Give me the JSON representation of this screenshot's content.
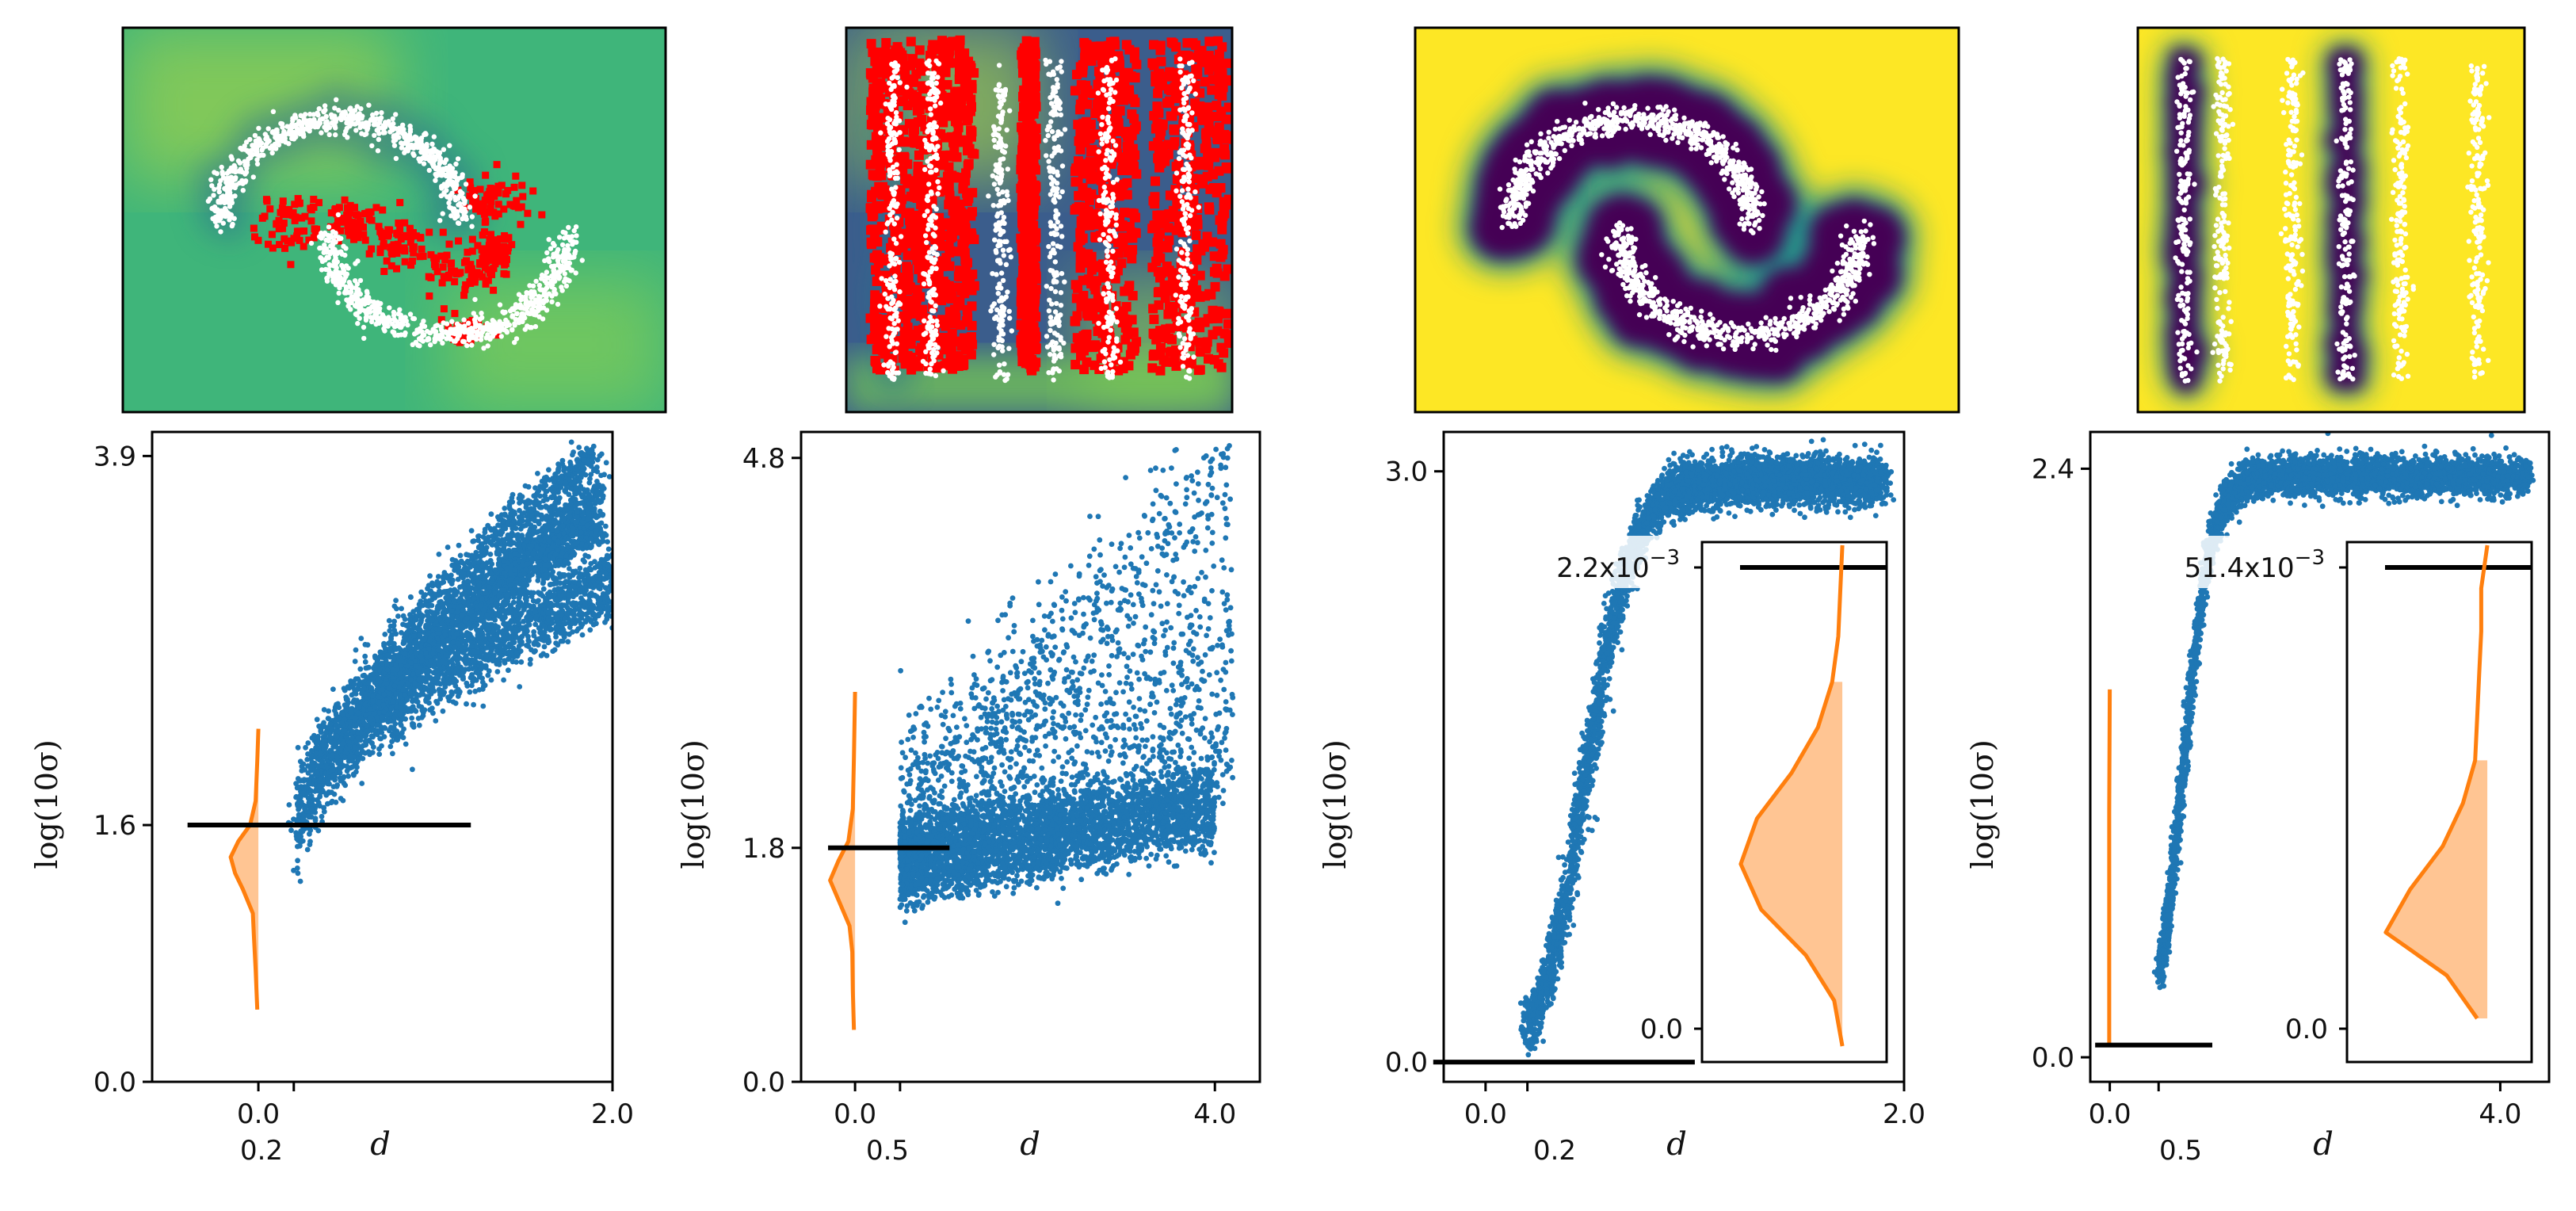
{
  "colors": {
    "scatter": "#1f77b4",
    "kde_line": "#ff7f0e",
    "kde_fill": "#ffbb80",
    "threshold": "#000000",
    "manifold_points": "#ffffff",
    "flagged_points": "#ff0000",
    "heat_low": "#440154",
    "heat_mid": "#21918c",
    "heat_high": "#fde725"
  },
  "heatmaps": [
    {
      "name": "moons-heatmap-raw",
      "dataset": "two-moons",
      "flagged_regions": true
    },
    {
      "name": "stripes-heatmap-raw",
      "dataset": "stripes",
      "flagged_regions": true
    },
    {
      "name": "moons-heatmap-trained",
      "dataset": "two-moons",
      "flagged_regions": false
    },
    {
      "name": "stripes-heatmap-trained",
      "dataset": "stripes",
      "flagged_regions": false
    }
  ],
  "chart_data": [
    {
      "type": "scatter",
      "title": "",
      "xlabel": "d",
      "ylabel": "log(10σ)",
      "xlim": [
        -0.6,
        2.0
      ],
      "ylim": [
        0.0,
        4.05
      ],
      "xticks": [
        "0.0",
        "2.0"
      ],
      "xtick_values": [
        0.0,
        2.0
      ],
      "extra_xtick": {
        "label": "0.2",
        "value": 0.2
      },
      "yticks": [
        "0.0",
        "1.6",
        "3.9"
      ],
      "ytick_values": [
        0.0,
        1.6,
        3.9
      ],
      "threshold": {
        "y": 1.6,
        "x_start": -0.4,
        "x_end": 1.2
      },
      "density_curve": {
        "x_base": 0.0,
        "y": [
          0.45,
          0.7,
          0.9,
          1.05,
          1.2,
          1.3,
          1.4,
          1.5,
          1.6,
          1.75,
          2.0,
          2.2
        ],
        "density": [
          0.02,
          0.05,
          0.08,
          0.1,
          0.28,
          0.42,
          0.5,
          0.36,
          0.15,
          0.05,
          0.02,
          0.0
        ]
      },
      "series_description": "branching bands rising from d≈0.2 to d≈1.9, log(10σ) from ≈1.5 to ≈3.9",
      "inset": null
    },
    {
      "type": "scatter",
      "title": "",
      "xlabel": "d",
      "ylabel": "log(10σ)",
      "xlim": [
        -0.6,
        4.5
      ],
      "ylim": [
        0.0,
        5.0
      ],
      "xticks": [
        "0.0",
        "4.0"
      ],
      "xtick_values": [
        0.0,
        4.0
      ],
      "extra_xtick": {
        "label": "0.5",
        "value": 0.5
      },
      "yticks": [
        "0.0",
        "1.8",
        "4.8"
      ],
      "ytick_values": [
        0.0,
        1.8,
        4.8
      ],
      "threshold": {
        "y": 1.8,
        "x_start": -0.3,
        "x_end": 1.05
      },
      "density_curve": {
        "x_base": 0.0,
        "y": [
          0.4,
          0.7,
          1.0,
          1.2,
          1.4,
          1.55,
          1.7,
          1.85,
          2.1,
          2.5,
          3.0
        ],
        "density": [
          0.02,
          0.04,
          0.05,
          0.1,
          0.3,
          0.45,
          0.3,
          0.12,
          0.04,
          0.02,
          0.0
        ]
      },
      "series_description": "dense cluster d 0.5–4.0 at log(10σ)≈1.4–1.9 plus sparse upper arcs reaching ≈4.8",
      "inset": null
    },
    {
      "type": "scatter",
      "title": "",
      "xlabel": "d",
      "ylabel": "log(10σ)",
      "xlim": [
        -0.2,
        2.0
      ],
      "ylim": [
        -0.1,
        3.2
      ],
      "xticks": [
        "0.0",
        "2.0"
      ],
      "xtick_values": [
        0.0,
        2.0
      ],
      "extra_xtick": {
        "label": "0.2",
        "value": 0.2
      },
      "yticks": [
        "0.0",
        "3.0"
      ],
      "ytick_values": [
        0.0,
        3.0
      ],
      "threshold": {
        "y": 0.0,
        "x_start": -0.25,
        "x_end": 1.0
      },
      "density_curve": null,
      "series_description": "steep S-curve rising from (0.2, 0.0) to plateau ≈3.0 near d≈1.9",
      "inset": {
        "labels": [
          "2.2x10",
          "0.0"
        ],
        "label_exponent": "−3",
        "top_value": 2.2,
        "bottom_value": 0.0,
        "threshold_at_top": true,
        "density": [
          0.0,
          0.01,
          0.02,
          0.05,
          0.12,
          0.25,
          0.42,
          0.5,
          0.4,
          0.18,
          0.04,
          0.0
        ],
        "fill_from_index": 3
      }
    },
    {
      "type": "scatter",
      "title": "",
      "xlabel": "d",
      "ylabel": "log(10σ)",
      "xlim": [
        -0.2,
        4.5
      ],
      "ylim": [
        -0.1,
        2.55
      ],
      "xticks": [
        "0.0",
        "4.0"
      ],
      "xtick_values": [
        0.0,
        4.0
      ],
      "extra_xtick": {
        "label": "0.5",
        "value": 0.5
      },
      "yticks": [
        "0.0",
        "2.4"
      ],
      "ytick_values": [
        0.0,
        2.4
      ],
      "threshold": {
        "y": 0.05,
        "x_start": -0.15,
        "x_end": 1.05
      },
      "density_curve": {
        "x_base": 0.0,
        "y": [
          0.05,
          0.2,
          0.5,
          1.0,
          1.5
        ],
        "density": [
          0.01,
          0.01,
          0.01,
          0.01,
          0.0
        ]
      },
      "series_description": "steep rise from (0.5, 0.4) to plateau ≈2.4 by d≈1.5, continuing to d≈4.3",
      "inset": {
        "labels": [
          "51.4x10",
          "0.0"
        ],
        "label_exponent": "−3",
        "top_value": 51.4,
        "bottom_value": 0.0,
        "threshold_at_top": true,
        "density": [
          0.0,
          0.03,
          0.03,
          0.04,
          0.05,
          0.06,
          0.12,
          0.22,
          0.38,
          0.5,
          0.2,
          0.05
        ],
        "fill_from_index": 5
      }
    }
  ]
}
